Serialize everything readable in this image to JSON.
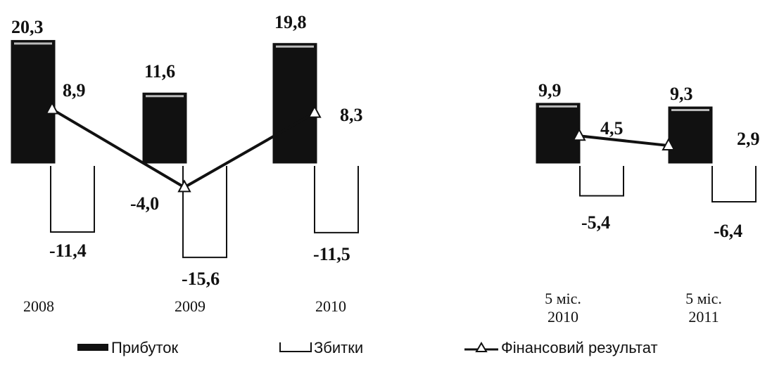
{
  "chart_data": {
    "type": "bar",
    "categories": [
      "2008",
      "2009",
      "2010",
      "5 міс. 2010",
      "5 міс. 2011"
    ],
    "category_lines": [
      [
        "2008"
      ],
      [
        "2009"
      ],
      [
        "2010"
      ],
      [
        "5 міс.",
        "2010"
      ],
      [
        "5 міс.",
        "2011"
      ]
    ],
    "series": [
      {
        "name": "Прибуток",
        "kind": "bar",
        "color": "#111111",
        "values": [
          20.3,
          11.6,
          19.8,
          9.9,
          9.3
        ],
        "labels": [
          "20,3",
          "11,6",
          "19,8",
          "9,9",
          "9,3"
        ]
      },
      {
        "name": "Збитки",
        "kind": "bar",
        "color": "#ffffff",
        "values": [
          -11.4,
          -15.6,
          -11.5,
          -5.4,
          -6.4
        ],
        "labels": [
          "-11,4",
          "-15,6",
          "-11,5",
          "-5,4",
          "-6,4"
        ]
      },
      {
        "name": "Фінансовий результат",
        "kind": "line",
        "marker": "triangle",
        "color": "#111111",
        "values": [
          8.9,
          -4.0,
          8.3,
          4.5,
          2.9
        ],
        "labels": [
          "8,9",
          "-4,0",
          "8,3",
          "4,5",
          "2,9"
        ]
      }
    ],
    "line_segments": [
      [
        0,
        1,
        2
      ],
      [
        3,
        4
      ]
    ],
    "title": "",
    "xlabel": "",
    "ylabel": "",
    "ylim": [
      -16,
      21
    ],
    "grid": false,
    "legend": "bottom"
  }
}
